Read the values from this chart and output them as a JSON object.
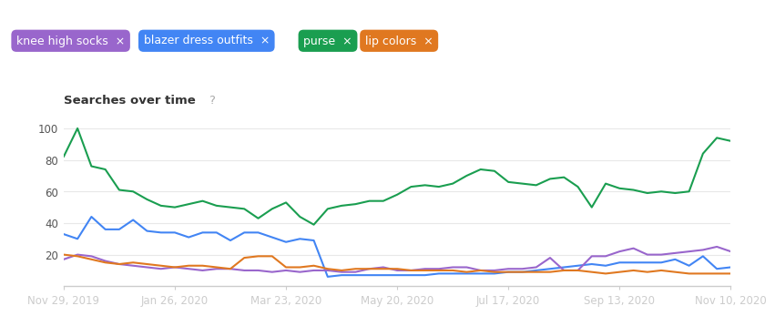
{
  "background_color": "#ffffff",
  "chart_title": "Searches over time",
  "question_mark": "?",
  "tags": [
    {
      "label": "knee high socks",
      "color": "#9966cc"
    },
    {
      "label": "blazer dress outfits",
      "color": "#4285f4"
    },
    {
      "label": "purse",
      "color": "#1a9e50"
    },
    {
      "label": "lip colors",
      "color": "#e07820"
    }
  ],
  "x_labels": [
    "Nov 29, 2019",
    "Jan 26, 2020",
    "Mar 23, 2020",
    "May 20, 2020",
    "Jul 17, 2020",
    "Sep 13, 2020",
    "Nov 10, 2020"
  ],
  "yticks": [
    20,
    40,
    60,
    80,
    100
  ],
  "ylim": [
    0,
    105
  ],
  "series": [
    {
      "name": "purse",
      "color": "#1a9e50",
      "data": [
        82,
        100,
        76,
        74,
        61,
        60,
        55,
        51,
        50,
        52,
        54,
        51,
        50,
        49,
        43,
        49,
        53,
        44,
        39,
        49,
        51,
        52,
        54,
        54,
        58,
        63,
        64,
        63,
        65,
        70,
        74,
        73,
        66,
        65,
        64,
        68,
        69,
        63,
        50,
        65,
        62,
        61,
        59,
        60,
        59,
        60,
        84,
        94,
        92
      ]
    },
    {
      "name": "blazer_dress_outfits",
      "color": "#4285f4",
      "data": [
        33,
        30,
        44,
        36,
        36,
        42,
        35,
        34,
        34,
        31,
        34,
        34,
        29,
        34,
        34,
        31,
        28,
        30,
        29,
        6,
        7,
        7,
        7,
        7,
        7,
        7,
        7,
        8,
        8,
        8,
        8,
        8,
        9,
        9,
        10,
        11,
        12,
        13,
        14,
        13,
        15,
        15,
        15,
        15,
        17,
        13,
        19,
        11,
        12
      ]
    },
    {
      "name": "knee_high_socks",
      "color": "#9966cc",
      "data": [
        17,
        20,
        19,
        16,
        14,
        13,
        12,
        11,
        12,
        11,
        10,
        11,
        11,
        10,
        10,
        9,
        10,
        9,
        10,
        10,
        9,
        9,
        11,
        12,
        10,
        10,
        11,
        11,
        12,
        12,
        10,
        10,
        11,
        11,
        12,
        18,
        10,
        10,
        19,
        19,
        22,
        24,
        20,
        20,
        21,
        22,
        23,
        25,
        22
      ]
    },
    {
      "name": "lip_colors",
      "color": "#e07820",
      "data": [
        20,
        19,
        17,
        15,
        14,
        15,
        14,
        13,
        12,
        13,
        13,
        12,
        11,
        18,
        19,
        19,
        12,
        12,
        13,
        11,
        10,
        11,
        11,
        11,
        11,
        10,
        10,
        10,
        10,
        9,
        10,
        9,
        9,
        9,
        9,
        9,
        10,
        10,
        9,
        8,
        9,
        10,
        9,
        10,
        9,
        8,
        8,
        8,
        8
      ]
    }
  ],
  "n_points": 49,
  "tag_font_size": 9,
  "axis_font_size": 8.5,
  "title_font_size": 9.5
}
